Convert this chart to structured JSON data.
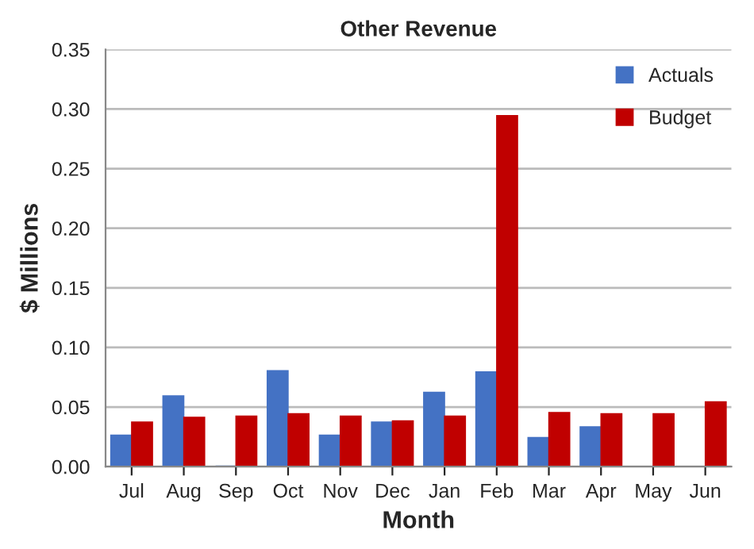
{
  "chart_data": {
    "type": "bar",
    "title": "Other Revenue",
    "xlabel": "Month",
    "ylabel": "$ Millions",
    "categories": [
      "Jul",
      "Aug",
      "Sep",
      "Oct",
      "Nov",
      "Dec",
      "Jan",
      "Feb",
      "Mar",
      "Apr",
      "May",
      "Jun"
    ],
    "series": [
      {
        "name": "Actuals",
        "color": "#4472c4",
        "values": [
          0.026,
          0.059,
          0.0,
          0.08,
          0.026,
          0.037,
          0.062,
          0.079,
          0.024,
          0.033,
          null,
          null
        ]
      },
      {
        "name": "Budget",
        "color": "#c00000",
        "values": [
          0.037,
          0.041,
          0.042,
          0.044,
          0.042,
          0.038,
          0.042,
          0.294,
          0.045,
          0.044,
          0.044,
          0.054
        ]
      }
    ],
    "ylim": [
      0,
      0.35
    ],
    "yticks": [
      {
        "value": 0,
        "label": "0.00"
      },
      {
        "value": 0.05,
        "label": "0.05"
      },
      {
        "value": 0.1,
        "label": "0.10"
      },
      {
        "value": 0.15,
        "label": "0.15"
      },
      {
        "value": 0.2,
        "label": "0.20"
      },
      {
        "value": 0.25,
        "label": "0.25"
      },
      {
        "value": 0.3,
        "label": "0.30"
      },
      {
        "value": 0.35,
        "label": "0.35"
      }
    ],
    "grid": "y",
    "legend": "top right"
  }
}
